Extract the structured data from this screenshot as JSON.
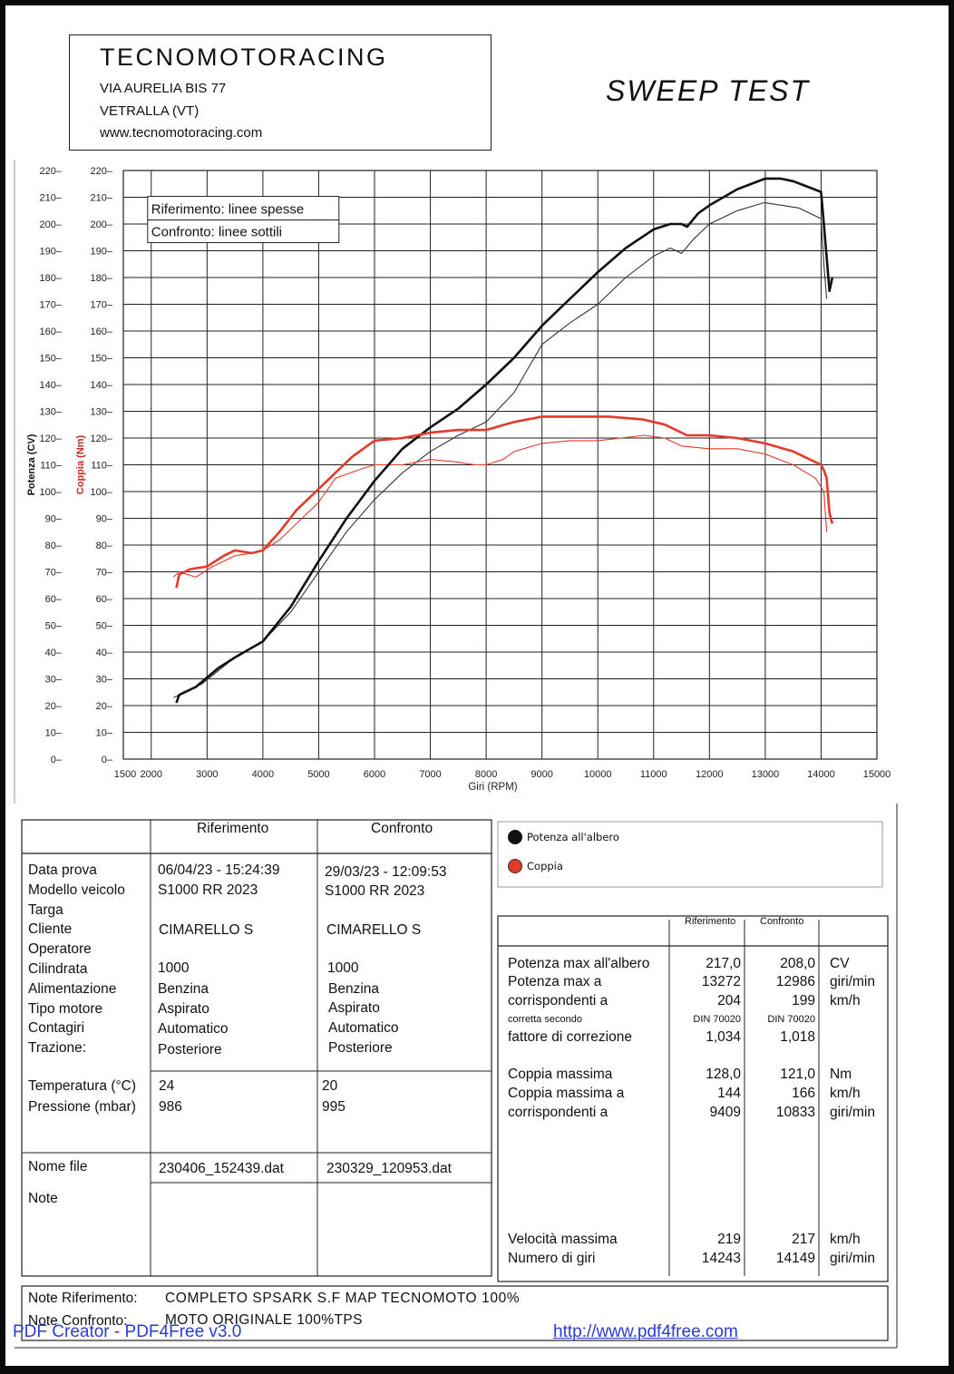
{
  "header": {
    "company": "TECNOMOTORACING",
    "address1": "VIA AURELIA BIS 77",
    "address2": "VETRALLA (VT)",
    "website": "www.tecnomotoracing.com",
    "test_title": "SWEEP TEST"
  },
  "chart_data": {
    "type": "line",
    "title": "",
    "xlabel": "Giri (RPM)",
    "ylabel_left": "Potenza (CV)",
    "ylabel_right": "Coppia (Nm)",
    "xlim": [
      1500,
      15000
    ],
    "ylim": [
      0,
      220
    ],
    "x_ticks": [
      1500,
      2000,
      3000,
      4000,
      5000,
      6000,
      7000,
      8000,
      9000,
      10000,
      11000,
      12000,
      13000,
      14000,
      15000
    ],
    "y_ticks": [
      0,
      10,
      20,
      30,
      40,
      50,
      60,
      70,
      80,
      90,
      100,
      110,
      120,
      130,
      140,
      150,
      160,
      170,
      180,
      190,
      200,
      210,
      220
    ],
    "grid": true,
    "legend_box": [
      "Riferimento: linee spesse",
      "Confronto: linee sottili"
    ],
    "series": [
      {
        "name": "Potenza all'albero",
        "run": "Riferimento",
        "color": "#111111",
        "thick": true,
        "x": [
          2450,
          2500,
          2800,
          3200,
          3500,
          4000,
          4500,
          5000,
          5500,
          6000,
          6500,
          7000,
          7500,
          8000,
          8500,
          9000,
          9500,
          10000,
          10500,
          11000,
          11300,
          11500,
          11600,
          11800,
          12000,
          12500,
          13000,
          13272,
          13500,
          14000,
          14050,
          14150,
          14200
        ],
        "y": [
          21,
          24,
          27,
          34,
          38,
          44,
          57,
          74,
          90,
          104,
          116,
          124,
          131,
          140,
          150,
          162,
          172,
          182,
          191,
          198,
          200,
          200,
          199,
          204,
          207,
          213,
          217,
          217,
          216,
          212,
          200,
          175,
          180
        ]
      },
      {
        "name": "Potenza all'albero",
        "run": "Confronto",
        "color": "#333333",
        "thick": false,
        "x": [
          2400,
          2500,
          2900,
          3200,
          3500,
          4000,
          4500,
          5000,
          5500,
          6000,
          6500,
          7000,
          7500,
          8000,
          8500,
          9000,
          9500,
          10000,
          10500,
          11000,
          11300,
          11500,
          11700,
          12000,
          12500,
          12986,
          13300,
          13600,
          14000,
          14050,
          14100
        ],
        "y": [
          23,
          24,
          28,
          33,
          38,
          44,
          55,
          70,
          85,
          97,
          107,
          115,
          121,
          126,
          137,
          155,
          163,
          170,
          180,
          188,
          191,
          189,
          194,
          200,
          205,
          208,
          207,
          206,
          202,
          185,
          172
        ]
      },
      {
        "name": "Coppia",
        "run": "Riferimento",
        "color": "#e33a2c",
        "thick": true,
        "x": [
          2450,
          2500,
          2700,
          3000,
          3300,
          3500,
          3800,
          4000,
          4300,
          4600,
          5000,
          5300,
          5600,
          6000,
          6500,
          7000,
          7500,
          8000,
          8500,
          9000,
          9409,
          9800,
          10200,
          10800,
          11200,
          11600,
          12000,
          12500,
          13000,
          13500,
          14000,
          14050,
          14100,
          14150,
          14200
        ],
        "y": [
          64,
          69,
          71,
          72,
          76,
          78,
          77,
          78,
          85,
          93,
          101,
          107,
          113,
          119,
          120,
          122,
          123,
          123,
          126,
          128,
          128,
          128,
          128,
          127,
          125,
          121,
          121,
          120,
          118,
          115,
          110,
          108,
          105,
          92,
          88
        ]
      },
      {
        "name": "Coppia",
        "run": "Confronto",
        "color": "#e33a2c",
        "thick": false,
        "x": [
          2400,
          2500,
          2800,
          3100,
          3500,
          3800,
          4000,
          4300,
          4700,
          5000,
          5300,
          5700,
          6000,
          6500,
          7000,
          7500,
          7800,
          8000,
          8300,
          8500,
          9000,
          9500,
          10000,
          10833,
          11200,
          11500,
          12000,
          12500,
          13000,
          13500,
          13900,
          14050,
          14100
        ],
        "y": [
          68,
          70,
          68,
          72,
          76,
          77,
          78,
          82,
          90,
          96,
          105,
          108,
          110,
          110,
          112,
          111,
          110,
          110,
          112,
          115,
          118,
          119,
          119,
          121,
          120,
          117,
          116,
          116,
          114,
          110,
          105,
          100,
          85
        ]
      }
    ]
  },
  "legend": {
    "items": [
      {
        "label": "Potenza all'albero",
        "color": "#111111"
      },
      {
        "label": "Coppia",
        "color": "#e33a2c"
      }
    ]
  },
  "info_table": {
    "col_headers": [
      "Riferimento",
      "Confronto"
    ],
    "group1_labels": [
      "Data prova",
      "Modello veicolo",
      "Targa",
      "Cliente",
      "Operatore",
      "Cilindrata",
      "Alimentazione",
      "Tipo motore",
      "Contagiri",
      "Trazione:"
    ],
    "rif": {
      "data": "06/04/23 - 15:24:39",
      "modello": "S1000 RR 2023",
      "cliente": "CIMARELLO S",
      "cilindrata": "1000",
      "alimentazione": "Benzina",
      "tipo": "Aspirato",
      "contagiri": "Automatico",
      "trazione": "Posteriore",
      "temperatura": "24",
      "pressione": "986",
      "file": "230406_152439.dat"
    },
    "conf": {
      "data": "29/03/23 - 12:09:53",
      "modello": "S1000 RR 2023",
      "cliente": "CIMARELLO S",
      "cilindrata": "1000",
      "alimentazione": "Benzina",
      "tipo": "Aspirato",
      "contagiri": "Automatico",
      "trazione": "Posteriore",
      "temperatura": "20",
      "pressione": "995",
      "file": "230329_120953.dat"
    },
    "temp_label": "Temperatura (°C)",
    "press_label": "Pressione (mbar)",
    "file_label": "Nome file",
    "note_label": "Note"
  },
  "results": {
    "col_headers": [
      "Riferimento",
      "Confronto"
    ],
    "rows": [
      {
        "label": "Potenza max all'albero",
        "rif": "217,0",
        "conf": "208,0",
        "unit": "CV"
      },
      {
        "label": "Potenza max a",
        "rif": "13272",
        "conf": "12986",
        "unit": "giri/min"
      },
      {
        "label": "corrispondenti a",
        "rif": "204",
        "conf": "199",
        "unit": "km/h"
      },
      {
        "label": "corretta secondo",
        "rif": "DIN 70020",
        "conf": "DIN 70020",
        "unit": ""
      },
      {
        "label": "fattore di correzione",
        "rif": "1,034",
        "conf": "1,018",
        "unit": ""
      },
      {
        "label": "Coppia massima",
        "rif": "128,0",
        "conf": "121,0",
        "unit": "Nm"
      },
      {
        "label": "Coppia massima a",
        "rif": "144",
        "conf": "166",
        "unit": "km/h"
      },
      {
        "label": "corrispondenti a",
        "rif": "9409",
        "conf": "10833",
        "unit": "giri/min"
      },
      {
        "label": "Velocità massima",
        "rif": "219",
        "conf": "217",
        "unit": "km/h"
      },
      {
        "label": "Numero di giri",
        "rif": "14243",
        "conf": "14149",
        "unit": "giri/min"
      }
    ]
  },
  "notes": {
    "rif_label": "Note Riferimento:",
    "rif_text": "COMPLETO SPSARK S.F MAP TECNOMOTO 100%",
    "conf_label": "Note Confronto:",
    "conf_text": "MOTO ORIGINALE 100%TPS"
  },
  "watermark": {
    "left": "PDF Creator - PDF4Free v3.0",
    "right": "http://www.pdf4free.com"
  }
}
